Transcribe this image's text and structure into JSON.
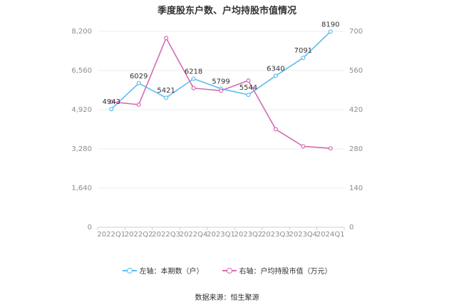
{
  "chart_data": {
    "type": "line",
    "title": "季度股东户数、户均持股市值情况",
    "categories": [
      "2022Q1",
      "2022Q2",
      "2022Q3",
      "2022Q4",
      "2023Q1",
      "2023Q2",
      "2023Q3",
      "2023Q4",
      "2024Q1"
    ],
    "left_axis": {
      "ticks": [
        "0",
        "1,640",
        "3,280",
        "4,920",
        "6,560",
        "8,200"
      ],
      "range": [
        0,
        8200
      ]
    },
    "right_axis": {
      "ticks": [
        "0",
        "140",
        "280",
        "420",
        "560",
        "700"
      ],
      "range": [
        0,
        700
      ]
    },
    "series": [
      {
        "name": "左轴：本期数（户）",
        "axis": "left",
        "color": "#5bbcf0",
        "values": [
          4943,
          6029,
          5421,
          6218,
          5799,
          5544,
          6340,
          7091,
          8190
        ],
        "labels": [
          "4943",
          "6029",
          "5421",
          "6218",
          "5799",
          "5544",
          "6340",
          "7091",
          "8190"
        ]
      },
      {
        "name": "右轴：户均持股市值（万元）",
        "axis": "right",
        "color": "#d46bb2",
        "values": [
          448,
          438,
          676,
          497,
          488,
          524,
          350,
          289,
          282
        ]
      }
    ],
    "grid": true,
    "legend_position": "bottom"
  },
  "source": "数据来源：恒生聚源"
}
